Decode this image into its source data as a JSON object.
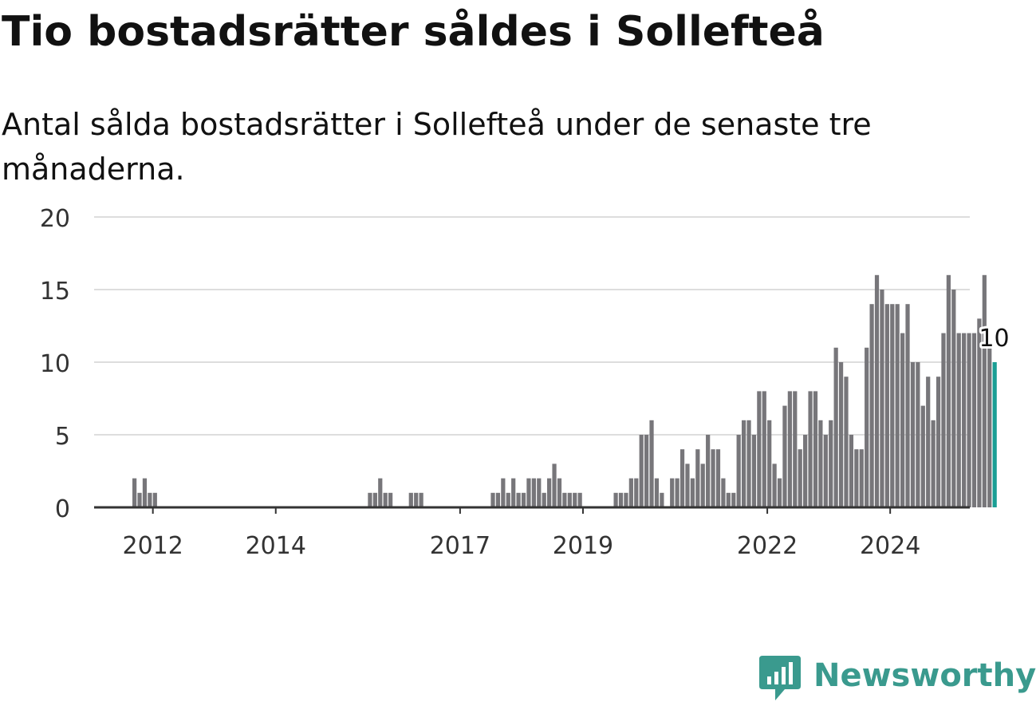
{
  "header": {
    "title": "Tio bostadsrätter såldes i Sollefteå",
    "subtitle": "Antal sålda bostadsrätter i Sollefteå under de senaste tre månaderna."
  },
  "brand": {
    "name": "Newsworthy",
    "color": "#3a9a8e",
    "icon": "bar-chart-badge-icon"
  },
  "chart_data": {
    "type": "bar",
    "x_start": "2011-09",
    "x_interval": "month",
    "ylim": [
      0,
      20
    ],
    "yticks": [
      0,
      5,
      10,
      15,
      20
    ],
    "xticks": [
      "2012",
      "2014",
      "2017",
      "2019",
      "2022",
      "2024"
    ],
    "grid": true,
    "bar_color": "#77767a",
    "highlight_color": "#1a9e94",
    "highlight_label": "10",
    "values": [
      2,
      1,
      2,
      1,
      1,
      0,
      0,
      0,
      0,
      0,
      0,
      0,
      0,
      0,
      0,
      0,
      0,
      0,
      0,
      0,
      0,
      0,
      0,
      0,
      0,
      0,
      0,
      0,
      0,
      0,
      0,
      0,
      0,
      0,
      0,
      0,
      0,
      0,
      0,
      0,
      0,
      0,
      0,
      0,
      0,
      0,
      1,
      1,
      2,
      1,
      1,
      0,
      0,
      0,
      1,
      1,
      1,
      0,
      0,
      0,
      0,
      0,
      0,
      0,
      0,
      0,
      0,
      0,
      0,
      0,
      1,
      1,
      2,
      1,
      2,
      1,
      1,
      2,
      2,
      2,
      1,
      2,
      3,
      2,
      1,
      1,
      1,
      1,
      0,
      0,
      0,
      0,
      0,
      0,
      1,
      1,
      1,
      2,
      2,
      5,
      5,
      6,
      2,
      1,
      0,
      2,
      2,
      4,
      3,
      2,
      4,
      3,
      5,
      4,
      4,
      2,
      1,
      1,
      5,
      6,
      6,
      5,
      8,
      8,
      6,
      3,
      2,
      7,
      8,
      8,
      4,
      5,
      8,
      8,
      6,
      5,
      6,
      11,
      10,
      9,
      5,
      4,
      4,
      11,
      14,
      16,
      15,
      14,
      14,
      14,
      12,
      14,
      10,
      10,
      7,
      9,
      6,
      9,
      12,
      16,
      15,
      12,
      12,
      12,
      12,
      13,
      16,
      11,
      10
    ]
  }
}
